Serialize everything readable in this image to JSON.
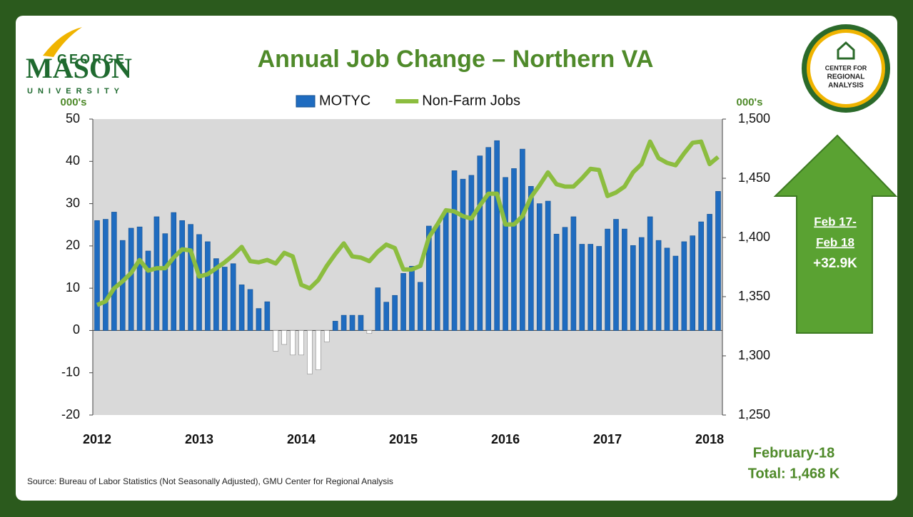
{
  "chart_data": {
    "type": "bar_line",
    "title": "Annual Job Change – Northern VA",
    "y_axis_label": "000's",
    "y2_axis_label": "000's",
    "categories": [
      "2012",
      null,
      null,
      null,
      null,
      null,
      null,
      null,
      null,
      null,
      null,
      null,
      "2013",
      null,
      null,
      null,
      null,
      null,
      null,
      null,
      null,
      null,
      null,
      null,
      "2014",
      null,
      null,
      null,
      null,
      null,
      null,
      null,
      null,
      null,
      null,
      null,
      "2015",
      null,
      null,
      null,
      null,
      null,
      null,
      null,
      null,
      null,
      null,
      null,
      "2016",
      null,
      null,
      null,
      null,
      null,
      null,
      null,
      null,
      null,
      null,
      null,
      "2017",
      null,
      null,
      null,
      null,
      null,
      null,
      null,
      null,
      null,
      null,
      null,
      "2018",
      null
    ],
    "series": [
      {
        "name": "MOTYC",
        "color": "#1f6cc0",
        "negative_color": "#ffffff",
        "values": [
          26,
          26.3,
          28,
          21.3,
          24.2,
          24.5,
          18.8,
          26.9,
          22.9,
          27.9,
          26,
          25.1,
          22.7,
          21,
          17,
          15,
          15.8,
          10.8,
          9.7,
          5.2,
          6.8,
          -4.9,
          -3.3,
          -5.8,
          -5.8,
          -10.3,
          -9.3,
          -2.7,
          2.2,
          3.6,
          3.6,
          3.6,
          -0.7,
          10.1,
          6.7,
          8.3,
          13.5,
          15.2,
          11.4,
          24.7,
          25,
          28,
          37.8,
          35.8,
          36.7,
          41.3,
          43.3,
          44.9,
          36.2,
          38.3,
          42.9,
          34.1,
          30,
          30.6,
          22.8,
          24.4,
          26.9,
          20.4,
          20.4,
          19.9,
          24,
          26.3,
          24,
          20.1,
          22,
          26.9,
          21.3,
          19.5,
          17.6,
          21,
          22.4,
          25.7,
          27.5,
          32.9
        ]
      },
      {
        "name": "Non-Farm Jobs",
        "color": "#8cbd3f",
        "axis": "y2",
        "values": [
          1343,
          1346,
          1357,
          1363,
          1370,
          1381,
          1372,
          1374,
          1374,
          1383,
          1390,
          1389,
          1367,
          1369,
          1374,
          1379,
          1385,
          1392,
          1380,
          1379,
          1381,
          1378,
          1387,
          1384,
          1360,
          1357,
          1364,
          1376,
          1386,
          1395,
          1384,
          1383,
          1380,
          1388,
          1394,
          1391,
          1373,
          1373,
          1376,
          1400,
          1411,
          1423,
          1422,
          1418,
          1416,
          1427,
          1437,
          1437,
          1411,
          1411,
          1418,
          1434,
          1444,
          1455,
          1445,
          1443,
          1443,
          1450,
          1458,
          1457,
          1435,
          1438,
          1443,
          1455,
          1462,
          1481,
          1467,
          1463,
          1461,
          1471,
          1480,
          1481,
          1462,
          1468
        ]
      }
    ],
    "ylim": [
      -20,
      50
    ],
    "yticks": [
      -20,
      -10,
      0,
      10,
      20,
      30,
      40,
      50
    ],
    "y2lim": [
      1250,
      1500
    ],
    "y2ticks": [
      {
        "value": 1250,
        "label": "1,250"
      },
      {
        "value": 1300,
        "label": "1,300"
      },
      {
        "value": 1350,
        "label": "1,350"
      },
      {
        "value": 1400,
        "label": "1,400"
      },
      {
        "value": 1450,
        "label": "1,450"
      },
      {
        "value": 1500,
        "label": "1,500"
      }
    ],
    "grid": false,
    "legend": "top",
    "source": "Source: Bureau of Labor Statistics (Not Seasonally Adjusted), GMU Center for Regional Analysis",
    "arrow_lines": [
      "Feb 17-",
      "Feb 18",
      "+32.9K"
    ],
    "total_lines": [
      "February-18",
      "Total: 1,468 K"
    ]
  },
  "logos": {
    "gmu": [
      "GEORGE",
      "MASON",
      "UNIVERSITY"
    ],
    "cra": [
      "CENTER FOR",
      "REGIONAL",
      "ANALYSIS"
    ]
  }
}
